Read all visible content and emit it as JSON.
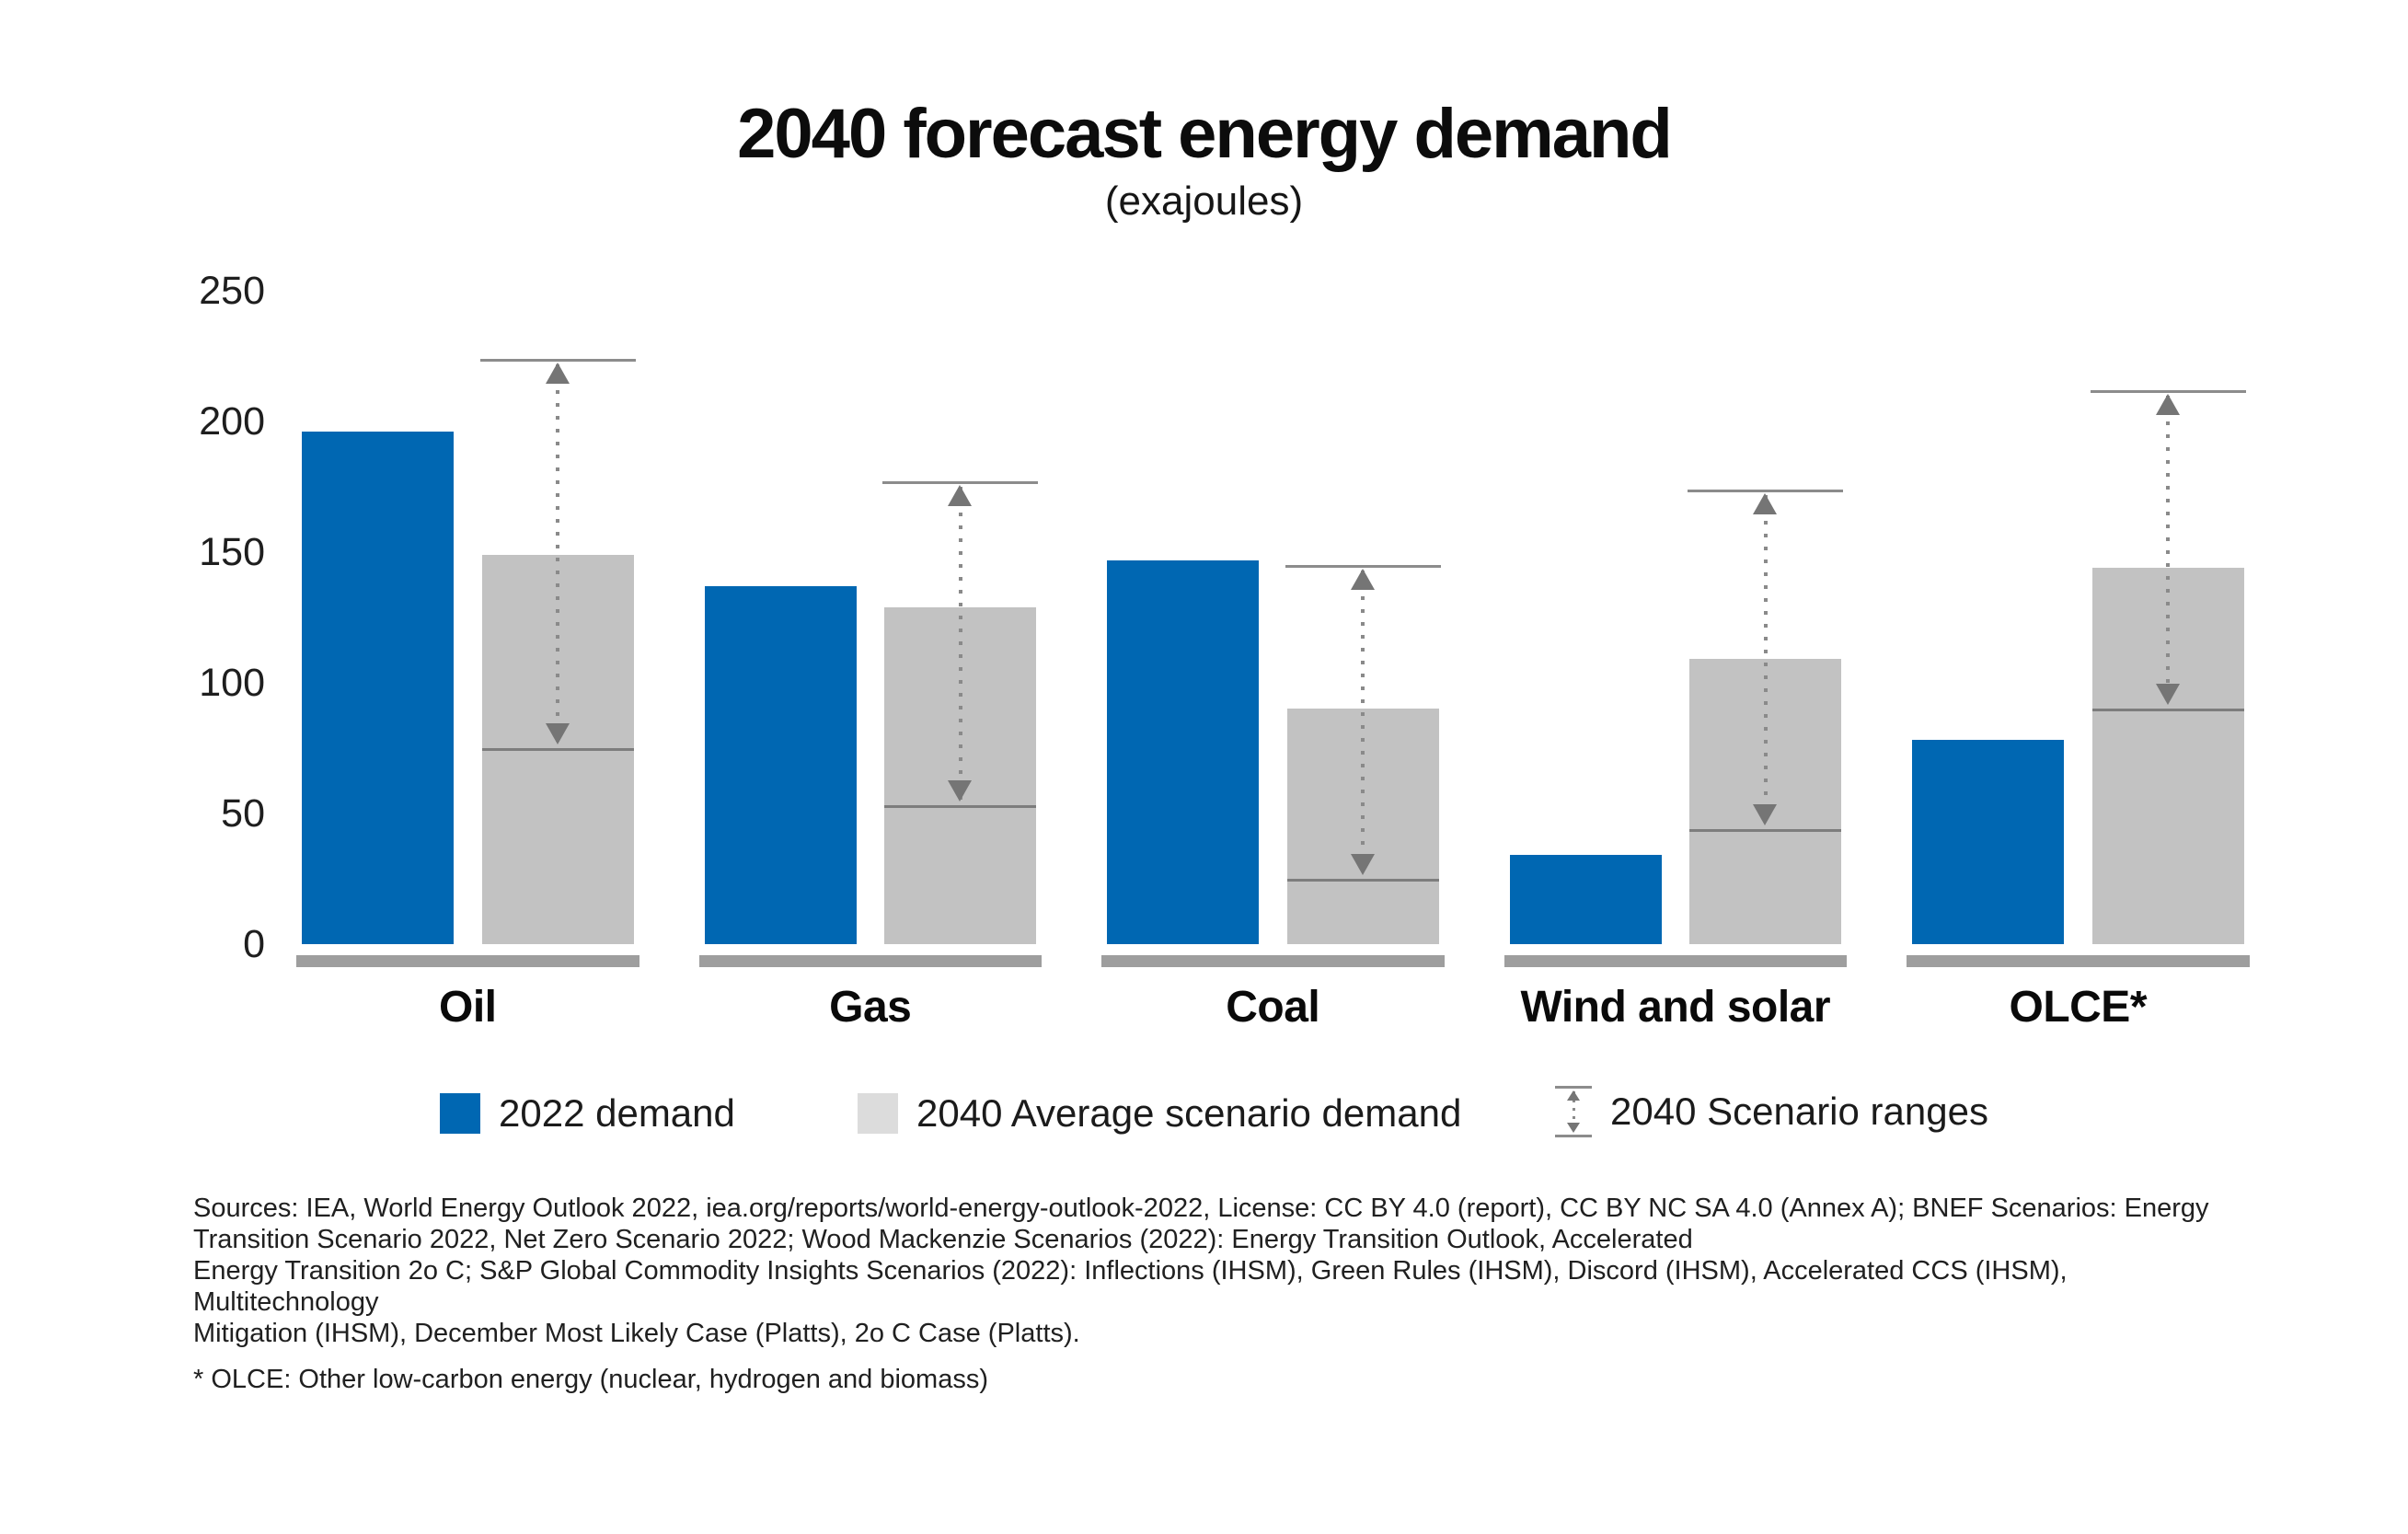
{
  "chart_data": {
    "type": "bar",
    "title": "2040 forecast energy demand",
    "subtitle": "(exajoules)",
    "unit": "exajoules",
    "categories": [
      "Oil",
      "Gas",
      "Coal",
      "Wind and solar",
      "OLCE*"
    ],
    "series": [
      {
        "name": "2022 demand",
        "values": [
          196,
          137,
          147,
          34,
          78
        ]
      },
      {
        "name": "2040 Average scenario demand",
        "values": [
          149,
          129,
          90,
          109,
          144
        ]
      }
    ],
    "ranges": {
      "name": "2040 Scenario ranges",
      "low": [
        75,
        53,
        25,
        44,
        90
      ],
      "high": [
        224,
        177,
        145,
        174,
        212
      ]
    },
    "ylim": [
      0,
      250
    ],
    "yticks": [
      250,
      200,
      150,
      100,
      50,
      0
    ],
    "grid": false,
    "legend_position": "bottom"
  },
  "colors": {
    "series_2022": "#0067b2",
    "series_2040": "#c2c2c2",
    "legend_2040_swatch": "#dcdcdc",
    "range_cap_line": "#8c8c8c",
    "range_low_line": "#7d7d7d",
    "range_dots": "#8a8a8a",
    "range_arrow": "#757575",
    "category_underline": "#9e9e9e"
  },
  "footer": {
    "sources_lines": [
      "Sources: IEA, World Energy Outlook 2022, iea.org/reports/world-energy-outlook-2022, License: CC BY 4.0 (report), CC BY NC SA 4.0 (Annex A); BNEF Scenarios: Energy",
      "Transition Scenario 2022, Net Zero Scenario 2022; Wood Mackenzie Scenarios (2022): Energy Transition Outlook, Accelerated",
      "Energy Transition 2o C; S&P Global Commodity Insights Scenarios (2022): Inflections (IHSM), Green Rules (IHSM), Discord (IHSM), Accelerated CCS (IHSM), Multitechnology",
      "Mitigation (IHSM), December Most Likely Case (Platts), 2o C Case (Platts)."
    ],
    "footnote": "* OLCE: Other low-carbon energy (nuclear, hydrogen and biomass)"
  }
}
